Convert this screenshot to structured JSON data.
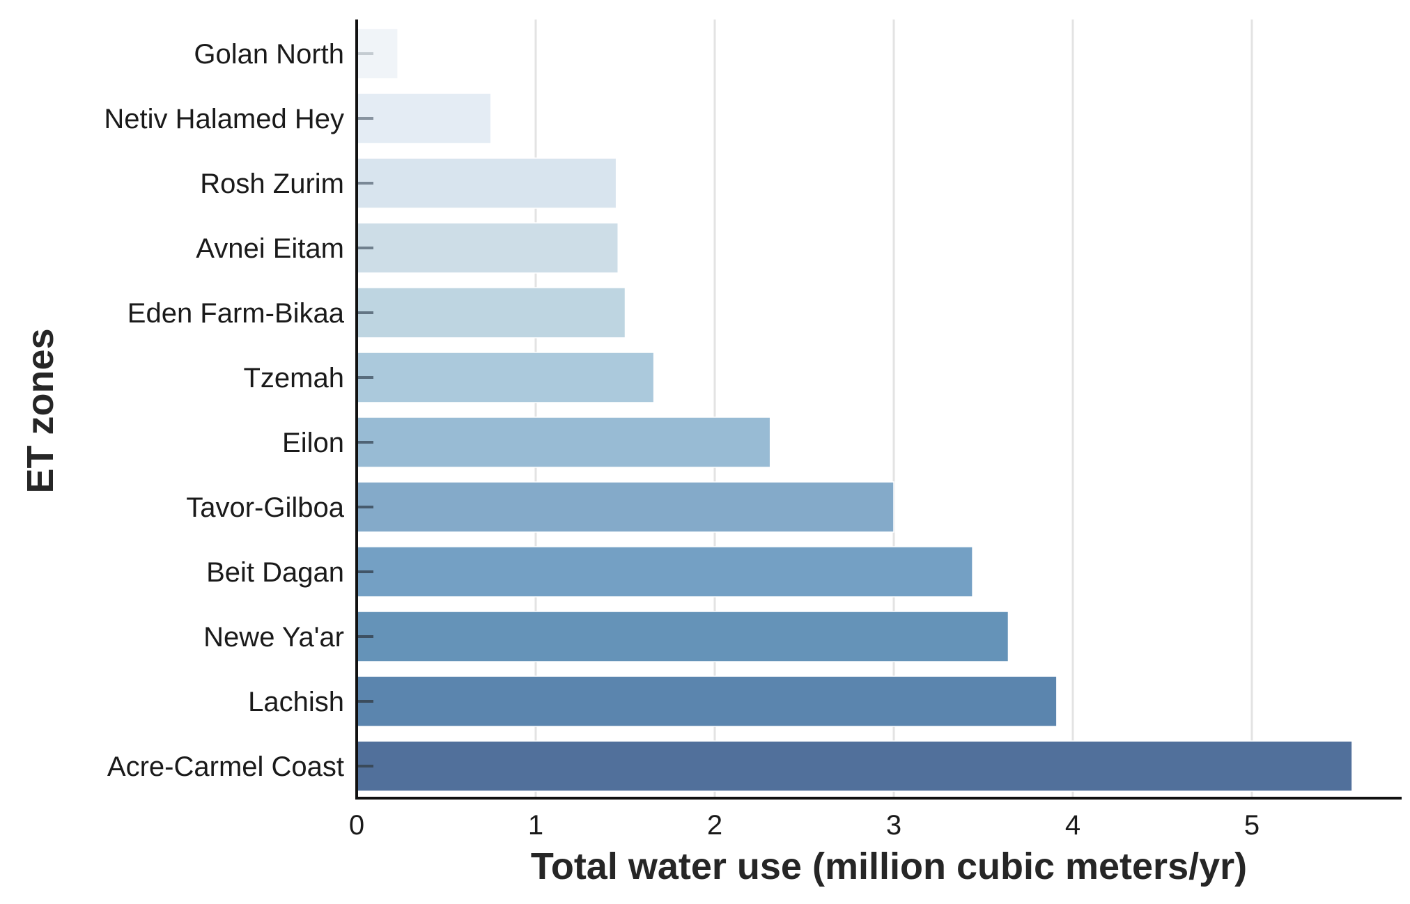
{
  "chart_data": {
    "type": "bar",
    "orientation": "horizontal",
    "title": "",
    "xlabel": "Total water use (million cubic meters/yr)",
    "ylabel": "ET zones",
    "xlim": [
      0,
      5.85
    ],
    "xticks": [
      0,
      1,
      2,
      3,
      4,
      5
    ],
    "grid": "vertical",
    "categories": [
      "Golan North",
      "Netiv Halamed Hey",
      "Rosh Zurim",
      "Avnei Eitam",
      "Eden Farm-Bikaa",
      "Tzemah",
      "Eilon",
      "Tavor-Gilboa",
      "Beit Dagan",
      "Newe Ya'ar",
      "Lachish",
      "Acre-Carmel Coast"
    ],
    "values": [
      0.23,
      0.75,
      1.45,
      1.46,
      1.5,
      1.66,
      2.31,
      3.0,
      3.44,
      3.64,
      3.91,
      5.56
    ],
    "colors": [
      "#f0f4f8",
      "#e4ecf4",
      "#d8e4ee",
      "#cddde7",
      "#bed5e1",
      "#abc9dc",
      "#98bbd4",
      "#84aac9",
      "#74a0c4",
      "#6593b8",
      "#5b85ae",
      "#51709b"
    ]
  }
}
